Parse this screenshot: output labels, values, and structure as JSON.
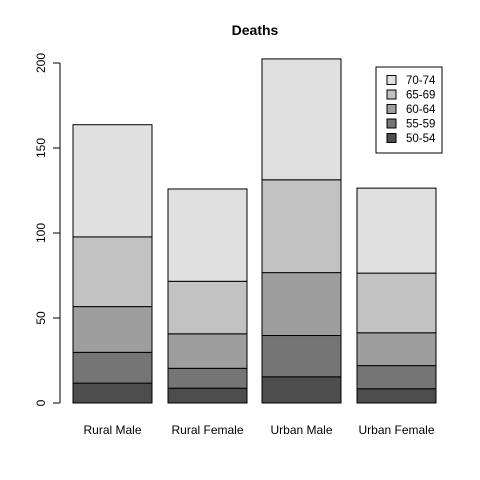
{
  "chart_data": {
    "type": "bar",
    "stacked": true,
    "title": "Deaths",
    "xlabel": "",
    "ylabel": "",
    "categories": [
      "Rural Male",
      "Rural Female",
      "Urban Male",
      "Urban Female"
    ],
    "ylim": [
      0,
      200
    ],
    "yticks": [
      0,
      50,
      100,
      150,
      200
    ],
    "series": [
      {
        "name": "50-54",
        "values": [
          11.7,
          8.7,
          15.4,
          8.4
        ],
        "color": "#4d4d4d"
      },
      {
        "name": "55-59",
        "values": [
          18.1,
          11.7,
          24.3,
          13.6
        ],
        "color": "#757575"
      },
      {
        "name": "60-64",
        "values": [
          26.9,
          20.3,
          37.0,
          19.3
        ],
        "color": "#9e9e9e"
      },
      {
        "name": "65-69",
        "values": [
          41.0,
          30.9,
          54.6,
          35.1
        ],
        "color": "#c2c2c2"
      },
      {
        "name": "70-74",
        "values": [
          66.0,
          54.3,
          71.1,
          50.0
        ],
        "color": "#e0e0e0"
      }
    ],
    "legend_position": "top-right",
    "grid": false
  }
}
